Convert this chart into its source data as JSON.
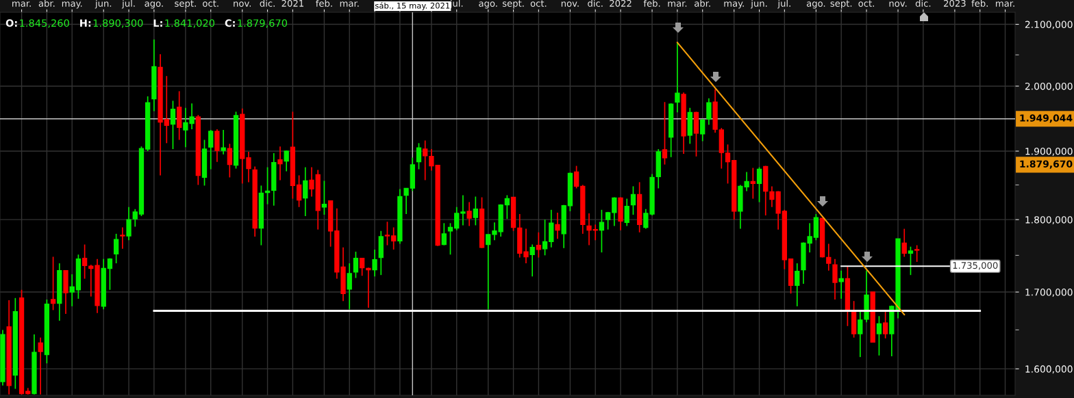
{
  "chart_data": {
    "type": "candlestick",
    "annotations": [
      "O:",
      "1.845,260",
      "H:",
      "1.890,300",
      "L:",
      "1.841,020",
      "C:",
      "1.879,670",
      "1.879,670",
      {
        "text": "1.735,000",
        "x": "2023-01-01",
        "y": 1735
      }
    ],
    "x": [
      "2020-02-15",
      "2020-02-22",
      "2020-02-29",
      "2020-03-07",
      "2020-03-14",
      "2020-03-21",
      "2020-03-28",
      "2020-04-04",
      "2020-04-11",
      "2020-04-18",
      "2020-04-25",
      "2020-05-02",
      "2020-05-09",
      "2020-05-16",
      "2020-05-23",
      "2020-05-30",
      "2020-06-06",
      "2020-06-13",
      "2020-06-20",
      "2020-06-27",
      "2020-07-04",
      "2020-07-11",
      "2020-07-18",
      "2020-07-25",
      "2020-08-01",
      "2020-08-08",
      "2020-08-15",
      "2020-08-22",
      "2020-08-29",
      "2020-09-05",
      "2020-09-12",
      "2020-09-19",
      "2020-09-26",
      "2020-10-03",
      "2020-10-10",
      "2020-10-17",
      "2020-10-24",
      "2020-10-31",
      "2020-11-07",
      "2020-11-14",
      "2020-11-21",
      "2020-11-28",
      "2020-12-05",
      "2020-12-12",
      "2020-12-19",
      "2020-12-26",
      "2021-01-02",
      "2021-01-09",
      "2021-01-16",
      "2021-01-23",
      "2021-01-30",
      "2021-02-06",
      "2021-02-13",
      "2021-02-20",
      "2021-02-27",
      "2021-03-06",
      "2021-03-13",
      "2021-03-20",
      "2021-03-27",
      "2021-04-03",
      "2021-04-10",
      "2021-04-17",
      "2021-04-24",
      "2021-05-01",
      "2021-05-08",
      "2021-05-15",
      "2021-05-22",
      "2021-05-29",
      "2021-06-05",
      "2021-06-12",
      "2021-06-19",
      "2021-06-26",
      "2021-07-03",
      "2021-07-10",
      "2021-07-17",
      "2021-07-24",
      "2021-07-31",
      "2021-08-07",
      "2021-08-14",
      "2021-08-21",
      "2021-08-28",
      "2021-09-04",
      "2021-09-11",
      "2021-09-18",
      "2021-09-25",
      "2021-10-02",
      "2021-10-09",
      "2021-10-16",
      "2021-10-23",
      "2021-10-30",
      "2021-11-06",
      "2021-11-13",
      "2021-11-20",
      "2021-11-27",
      "2021-12-04",
      "2021-12-11",
      "2021-12-18",
      "2021-12-25",
      "2022-01-01",
      "2022-01-08",
      "2022-01-15",
      "2022-01-22",
      "2022-01-29",
      "2022-02-05",
      "2022-02-12",
      "2022-02-19",
      "2022-02-26",
      "2022-03-05",
      "2022-03-12",
      "2022-03-19",
      "2022-03-26",
      "2022-04-02",
      "2022-04-09",
      "2022-04-16",
      "2022-04-23",
      "2022-04-30",
      "2022-05-07",
      "2022-05-14",
      "2022-05-21",
      "2022-05-28",
      "2022-06-04",
      "2022-06-11",
      "2022-06-18",
      "2022-06-25",
      "2022-07-02",
      "2022-07-09",
      "2022-07-16",
      "2022-07-23",
      "2022-07-30",
      "2022-08-06",
      "2022-08-13",
      "2022-08-20",
      "2022-08-27",
      "2022-09-03",
      "2022-09-10",
      "2022-09-17",
      "2022-09-24",
      "2022-10-01",
      "2022-10-08",
      "2022-10-15",
      "2022-10-22",
      "2022-10-29",
      "2022-11-05",
      "2022-11-12",
      "2022-11-19",
      "2022-11-26"
    ],
    "ohlc": [
      [
        1584,
        1650,
        1579,
        1644
      ],
      [
        1654,
        1689,
        1568,
        1579
      ],
      [
        1592,
        1692,
        1575,
        1674
      ],
      [
        1692,
        1703,
        1568,
        1569
      ],
      [
        1572,
        1576,
        1568,
        1569
      ],
      [
        1569,
        1644,
        1568,
        1621
      ],
      [
        1633,
        1640,
        1568,
        1622
      ],
      [
        1618,
        1690,
        1607,
        1684
      ],
      [
        1690,
        1748,
        1676,
        1685
      ],
      [
        1685,
        1739,
        1662,
        1729
      ],
      [
        1729,
        1729,
        1671,
        1699
      ],
      [
        1700,
        1724,
        1681,
        1707
      ],
      [
        1703,
        1751,
        1691,
        1745
      ],
      [
        1746,
        1765,
        1718,
        1736
      ],
      [
        1735,
        1737,
        1694,
        1732
      ],
      [
        1736,
        1745,
        1672,
        1682
      ],
      [
        1681,
        1745,
        1677,
        1732
      ],
      [
        1732,
        1746,
        1703,
        1745
      ],
      [
        1752,
        1780,
        1739,
        1772
      ],
      [
        1778,
        1789,
        1759,
        1777
      ],
      [
        1777,
        1818,
        1771,
        1800
      ],
      [
        1801,
        1815,
        1790,
        1811
      ],
      [
        1808,
        1907,
        1805,
        1904
      ],
      [
        1903,
        1984,
        1900,
        1974
      ],
      [
        1980,
        2075,
        1961,
        2031
      ],
      [
        2030,
        2051,
        1864,
        1944
      ],
      [
        1948,
        2016,
        1912,
        1939
      ],
      [
        1941,
        1977,
        1903,
        1964
      ],
      [
        1967,
        1992,
        1917,
        1936
      ],
      [
        1932,
        1966,
        1906,
        1943
      ],
      [
        1942,
        1973,
        1933,
        1952
      ],
      [
        1952,
        1955,
        1850,
        1864
      ],
      [
        1861,
        1917,
        1849,
        1903
      ],
      [
        1906,
        1932,
        1873,
        1930
      ],
      [
        1930,
        1933,
        1884,
        1901
      ],
      [
        1901,
        1932,
        1895,
        1905
      ],
      [
        1904,
        1911,
        1861,
        1880
      ],
      [
        1879,
        1960,
        1874,
        1954
      ],
      [
        1956,
        1965,
        1852,
        1889
      ],
      [
        1890,
        1899,
        1854,
        1874
      ],
      [
        1872,
        1877,
        1776,
        1788
      ],
      [
        1788,
        1849,
        1764,
        1838
      ],
      [
        1839,
        1876,
        1822,
        1841
      ],
      [
        1842,
        1897,
        1820,
        1883
      ],
      [
        1887,
        1907,
        1857,
        1881
      ],
      [
        1885,
        1901,
        1870,
        1900
      ],
      [
        1906,
        1960,
        1830,
        1849
      ],
      [
        1850,
        1864,
        1818,
        1828
      ],
      [
        1831,
        1876,
        1805,
        1856
      ],
      [
        1857,
        1876,
        1833,
        1844
      ],
      [
        1865,
        1872,
        1786,
        1813
      ],
      [
        1818,
        1856,
        1807,
        1822
      ],
      [
        1827,
        1827,
        1762,
        1784
      ],
      [
        1784,
        1816,
        1718,
        1727
      ],
      [
        1734,
        1761,
        1688,
        1698
      ],
      [
        1704,
        1739,
        1677,
        1725
      ],
      [
        1727,
        1755,
        1719,
        1746
      ],
      [
        1746,
        1746,
        1722,
        1733
      ],
      [
        1732,
        1733,
        1679,
        1730
      ],
      [
        1730,
        1758,
        1721,
        1744
      ],
      [
        1747,
        1784,
        1723,
        1776
      ],
      [
        1778,
        1797,
        1764,
        1777
      ],
      [
        1777,
        1789,
        1758,
        1770
      ],
      [
        1770,
        1844,
        1766,
        1833
      ],
      [
        1835,
        1845,
        1808,
        1845
      ],
      [
        1845.26,
        1890.3,
        1841.02,
        1879.67
      ],
      [
        1884,
        1912,
        1873,
        1905
      ],
      [
        1903,
        1916,
        1857,
        1893
      ],
      [
        1892,
        1903,
        1871,
        1878
      ],
      [
        1879,
        1879,
        1763,
        1764
      ],
      [
        1765,
        1795,
        1764,
        1780
      ],
      [
        1784,
        1795,
        1751,
        1789
      ],
      [
        1788,
        1818,
        1785,
        1809
      ],
      [
        1809,
        1835,
        1792,
        1811
      ],
      [
        1812,
        1825,
        1791,
        1802
      ],
      [
        1803,
        1833,
        1792,
        1815
      ],
      [
        1815,
        1832,
        1760,
        1761
      ],
      [
        1765,
        1779,
        1677,
        1779
      ],
      [
        1779,
        1796,
        1771,
        1784
      ],
      [
        1783,
        1822,
        1776,
        1821
      ],
      [
        1821,
        1835,
        1801,
        1830
      ],
      [
        1832,
        1832,
        1784,
        1789
      ],
      [
        1788,
        1808,
        1747,
        1753
      ],
      [
        1755,
        1787,
        1739,
        1748
      ],
      [
        1751,
        1765,
        1721,
        1761
      ],
      [
        1764,
        1782,
        1747,
        1758
      ],
      [
        1759,
        1800,
        1750,
        1769
      ],
      [
        1769,
        1814,
        1761,
        1795
      ],
      [
        1793,
        1810,
        1773,
        1785
      ],
      [
        1780,
        1821,
        1760,
        1820
      ],
      [
        1820,
        1868,
        1812,
        1867
      ],
      [
        1869,
        1878,
        1845,
        1848
      ],
      [
        1848,
        1850,
        1780,
        1793
      ],
      [
        1791,
        1809,
        1764,
        1785
      ],
      [
        1786,
        1793,
        1771,
        1785
      ],
      [
        1785,
        1814,
        1754,
        1796
      ],
      [
        1800,
        1811,
        1786,
        1810
      ],
      [
        1810,
        1832,
        1791,
        1831
      ],
      [
        1831,
        1832,
        1785,
        1798
      ],
      [
        1796,
        1830,
        1791,
        1819
      ],
      [
        1821,
        1848,
        1807,
        1836
      ],
      [
        1836,
        1854,
        1782,
        1793
      ],
      [
        1789,
        1815,
        1787,
        1809
      ],
      [
        1808,
        1866,
        1806,
        1861
      ],
      [
        1862,
        1903,
        1845,
        1899
      ],
      [
        1902,
        1975,
        1880,
        1890
      ],
      [
        1921,
        1973,
        1891,
        1972
      ],
      [
        1975,
        2070,
        1959,
        1989
      ],
      [
        1987,
        1990,
        1896,
        1923
      ],
      [
        1924,
        1966,
        1911,
        1959
      ],
      [
        1959,
        1960,
        1892,
        1927
      ],
      [
        1926,
        1949,
        1915,
        1947
      ],
      [
        1949,
        1981,
        1940,
        1974
      ],
      [
        1975,
        1995,
        1928,
        1933
      ],
      [
        1932,
        1935,
        1874,
        1898
      ],
      [
        1897,
        1910,
        1852,
        1884
      ],
      [
        1886,
        1886,
        1800,
        1812
      ],
      [
        1812,
        1850,
        1787,
        1848
      ],
      [
        1847,
        1869,
        1841,
        1855
      ],
      [
        1855,
        1875,
        1830,
        1852
      ],
      [
        1852,
        1876,
        1825,
        1873
      ],
      [
        1877,
        1878,
        1806,
        1841
      ],
      [
        1840,
        1848,
        1818,
        1829
      ],
      [
        1840,
        1841,
        1786,
        1809
      ],
      [
        1812,
        1814,
        1731,
        1744
      ],
      [
        1745,
        1745,
        1698,
        1709
      ],
      [
        1709,
        1739,
        1681,
        1728
      ],
      [
        1730,
        1768,
        1711,
        1767
      ],
      [
        1767,
        1795,
        1754,
        1776
      ],
      [
        1775,
        1808,
        1771,
        1803
      ],
      [
        1802,
        1802,
        1747,
        1748
      ],
      [
        1747,
        1766,
        1729,
        1739
      ],
      [
        1737,
        1745,
        1690,
        1713
      ],
      [
        1714,
        1729,
        1691,
        1718
      ],
      [
        1718,
        1735,
        1655,
        1677
      ],
      [
        1675,
        1688,
        1640,
        1645
      ],
      [
        1645,
        1675,
        1615,
        1663
      ],
      [
        1664,
        1729,
        1660,
        1696
      ],
      [
        1700,
        1700,
        1634,
        1634
      ],
      [
        1645,
        1668,
        1617,
        1658
      ],
      [
        1659,
        1674,
        1639,
        1645
      ],
      [
        1645,
        1682,
        1616,
        1681
      ],
      [
        1677,
        1773,
        1665,
        1773
      ],
      [
        1767,
        1787,
        1748,
        1753
      ],
      [
        1753,
        1762,
        1723,
        1756
      ],
      [
        1758,
        1764,
        1741,
        1757
      ]
    ],
    "series": [
      {
        "type": "line",
        "color": "#ffffff",
        "x": [
          "2020-08-01",
          "2023-02-04"
        ],
        "values": [
          1675,
          1675
        ]
      },
      {
        "type": "line",
        "color": "#ffffff",
        "x": [
          "2022-09-03",
          "2023-01-01"
        ],
        "values": [
          1735,
          1735
        ]
      },
      {
        "type": "line",
        "color": "#f5a00a",
        "x": [
          "2022-03-05",
          "2022-11-12"
        ],
        "values": [
          2070,
          1670
        ]
      }
    ],
    "ref_lines": [
      {
        "axis": "y",
        "value": 1949.044,
        "label": "1.949,044",
        "color": "#c8c8c8"
      },
      {
        "axis": "x",
        "value": "2021-05-15",
        "label": "sáb., 15 may. 2021",
        "color": "#c8c8c8"
      }
    ],
    "log": true,
    "xlim": [
      "2020-02-12",
      "2023-03-15"
    ],
    "xticks": [
      {
        "value": "2020-03-07",
        "label": "mar."
      },
      {
        "value": "2020-04-04",
        "label": "abr."
      },
      {
        "value": "2020-05-02",
        "label": "may."
      },
      {
        "value": "2020-06-06",
        "label": "jun."
      },
      {
        "value": "2020-07-04",
        "label": "jul."
      },
      {
        "value": "2020-08-01",
        "label": "ago."
      },
      {
        "value": "2020-09-05",
        "label": "sept."
      },
      {
        "value": "2020-10-03",
        "label": "oct."
      },
      {
        "value": "2020-11-07",
        "label": "nov."
      },
      {
        "value": "2020-12-05",
        "label": "dic."
      },
      {
        "value": "2021-01-02",
        "label": "2021"
      },
      {
        "value": "2021-02-06",
        "label": "feb."
      },
      {
        "value": "2021-03-06",
        "label": "mar."
      },
      {
        "value": "2021-04-03",
        "label": null
      },
      {
        "value": "2021-05-01",
        "label": null
      },
      {
        "value": "2021-06-05",
        "label": null
      },
      {
        "value": "2021-07-03",
        "label": "jul."
      },
      {
        "value": "2021-08-07",
        "label": "ago."
      },
      {
        "value": "2021-09-04",
        "label": "sept."
      },
      {
        "value": "2021-10-02",
        "label": "oct."
      },
      {
        "value": "2021-11-06",
        "label": "nov."
      },
      {
        "value": "2021-12-04",
        "label": "dic."
      },
      {
        "value": "2022-01-01",
        "label": "2022"
      },
      {
        "value": "2022-02-05",
        "label": "feb."
      },
      {
        "value": "2022-03-05",
        "label": "mar."
      },
      {
        "value": "2022-04-02",
        "label": "abr."
      },
      {
        "value": "2022-05-07",
        "label": "may."
      },
      {
        "value": "2022-06-04",
        "label": "jun."
      },
      {
        "value": "2022-07-02",
        "label": "jul."
      },
      {
        "value": "2022-08-06",
        "label": "ago."
      },
      {
        "value": "2022-09-03",
        "label": "sept."
      },
      {
        "value": "2022-10-01",
        "label": "oct."
      },
      {
        "value": "2022-11-05",
        "label": "nov."
      },
      {
        "value": "2022-12-03",
        "label": "dic."
      },
      {
        "value": "2023-01-07",
        "label": "2023"
      },
      {
        "value": "2023-02-04",
        "label": "feb."
      },
      {
        "value": "2023-03-04",
        "label": "mar."
      }
    ],
    "ylim": [
      1567,
      2120
    ],
    "yticks": [
      {
        "value": 2100,
        "label": "2.100,000"
      },
      {
        "value": 2050,
        "label": null
      },
      {
        "value": 2000,
        "label": "2.000,000"
      },
      {
        "value": 1900,
        "label": "1.900,000"
      },
      {
        "value": 1850,
        "label": null
      },
      {
        "value": 1800,
        "label": "1.800,000"
      },
      {
        "value": 1750,
        "label": null
      },
      {
        "value": 1700,
        "label": "1.700,000"
      },
      {
        "value": 1650,
        "label": null
      },
      {
        "value": 1600,
        "label": "1.600,000"
      }
    ],
    "grid": true
  }
}
